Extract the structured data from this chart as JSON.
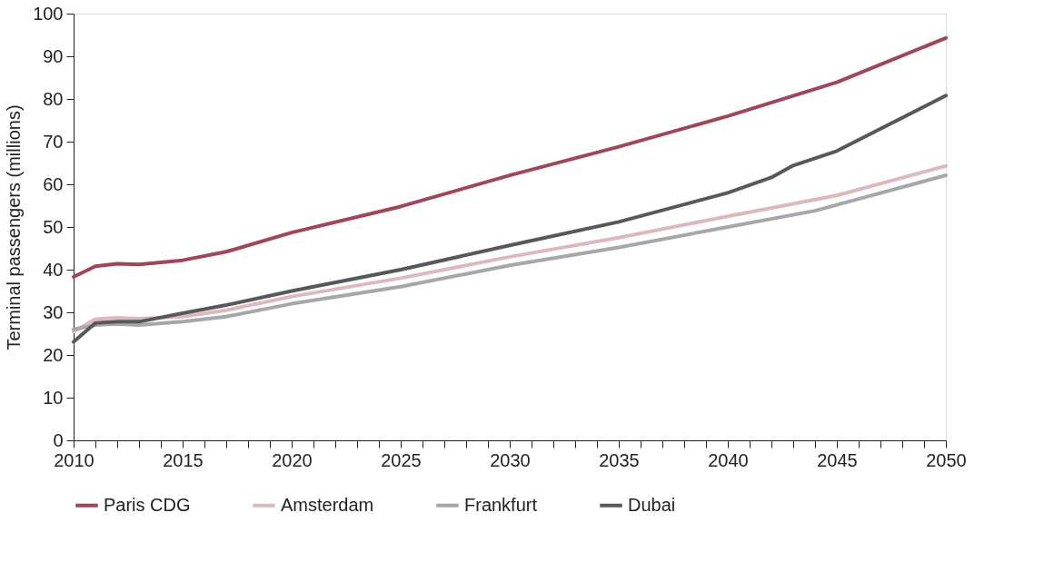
{
  "chart_data": {
    "type": "line",
    "ylabel": "Terminal passengers (millions)",
    "xlim": [
      2010,
      2050
    ],
    "ylim": [
      0,
      100
    ],
    "xticks": [
      2010,
      {
        "value": 2011,
        "label": null
      },
      {
        "value": 2012,
        "label": null
      },
      {
        "value": 2013,
        "label": null
      },
      {
        "value": 2014,
        "label": null
      },
      2015,
      {
        "value": 2016,
        "label": null
      },
      {
        "value": 2017,
        "label": null
      },
      {
        "value": 2018,
        "label": null
      },
      {
        "value": 2019,
        "label": null
      },
      2020,
      {
        "value": 2021,
        "label": null
      },
      {
        "value": 2022,
        "label": null
      },
      {
        "value": 2023,
        "label": null
      },
      {
        "value": 2024,
        "label": null
      },
      2025,
      {
        "value": 2026,
        "label": null
      },
      {
        "value": 2027,
        "label": null
      },
      {
        "value": 2028,
        "label": null
      },
      {
        "value": 2029,
        "label": null
      },
      2030,
      {
        "value": 2031,
        "label": null
      },
      {
        "value": 2032,
        "label": null
      },
      {
        "value": 2033,
        "label": null
      },
      {
        "value": 2034,
        "label": null
      },
      2035,
      {
        "value": 2036,
        "label": null
      },
      {
        "value": 2037,
        "label": null
      },
      {
        "value": 2038,
        "label": null
      },
      {
        "value": 2039,
        "label": null
      },
      2040,
      {
        "value": 2041,
        "label": null
      },
      {
        "value": 2042,
        "label": null
      },
      {
        "value": 2043,
        "label": null
      },
      {
        "value": 2044,
        "label": null
      },
      2045,
      {
        "value": 2046,
        "label": null
      },
      {
        "value": 2047,
        "label": null
      },
      {
        "value": 2048,
        "label": null
      },
      {
        "value": 2049,
        "label": null
      },
      2050
    ],
    "yticks": [
      0,
      10,
      20,
      30,
      40,
      50,
      60,
      70,
      80,
      90,
      100
    ],
    "grid": false,
    "legend": "bottom",
    "marker": "none",
    "line_style": "solid",
    "series": [
      {
        "name": "Paris CDG",
        "color": "#a0465a",
        "x": [
          2010,
          2011,
          2012,
          2013,
          2015,
          2017,
          2020,
          2025,
          2030,
          2035,
          2040,
          2045,
          2050
        ],
        "values": [
          38.3,
          40.8,
          41.4,
          41.2,
          42.2,
          44.2,
          48.7,
          54.8,
          62.1,
          68.8,
          76.0,
          83.9,
          94.3
        ]
      },
      {
        "name": "Amsterdam",
        "color": "#dbb9bd",
        "x": [
          2010,
          2011,
          2012,
          2013,
          2015,
          2017,
          2020,
          2025,
          2030,
          2035,
          2040,
          2045,
          2050
        ],
        "values": [
          25.5,
          28.4,
          28.7,
          28.5,
          29.0,
          30.5,
          33.7,
          38.0,
          43.0,
          47.5,
          52.5,
          57.4,
          64.3
        ]
      },
      {
        "name": "Frankfurt",
        "color": "#a7a7ab",
        "x": [
          2010,
          2011,
          2012,
          2013,
          2015,
          2017,
          2020,
          2025,
          2030,
          2035,
          2040,
          2044,
          2045,
          2050
        ],
        "values": [
          26.0,
          27.0,
          27.3,
          27.0,
          27.8,
          29.0,
          32.0,
          36.0,
          41.0,
          45.2,
          50.0,
          53.8,
          55.2,
          62.1
        ]
      },
      {
        "name": "Dubai",
        "color": "#58585a",
        "x": [
          2010,
          2011,
          2012,
          2013,
          2015,
          2017,
          2020,
          2025,
          2030,
          2035,
          2040,
          2042,
          2043,
          2045,
          2050
        ],
        "values": [
          23.1,
          27.5,
          27.8,
          27.8,
          29.8,
          31.7,
          35.0,
          40.0,
          45.7,
          51.2,
          58.0,
          61.6,
          64.4,
          67.8,
          80.8
        ]
      }
    ]
  }
}
